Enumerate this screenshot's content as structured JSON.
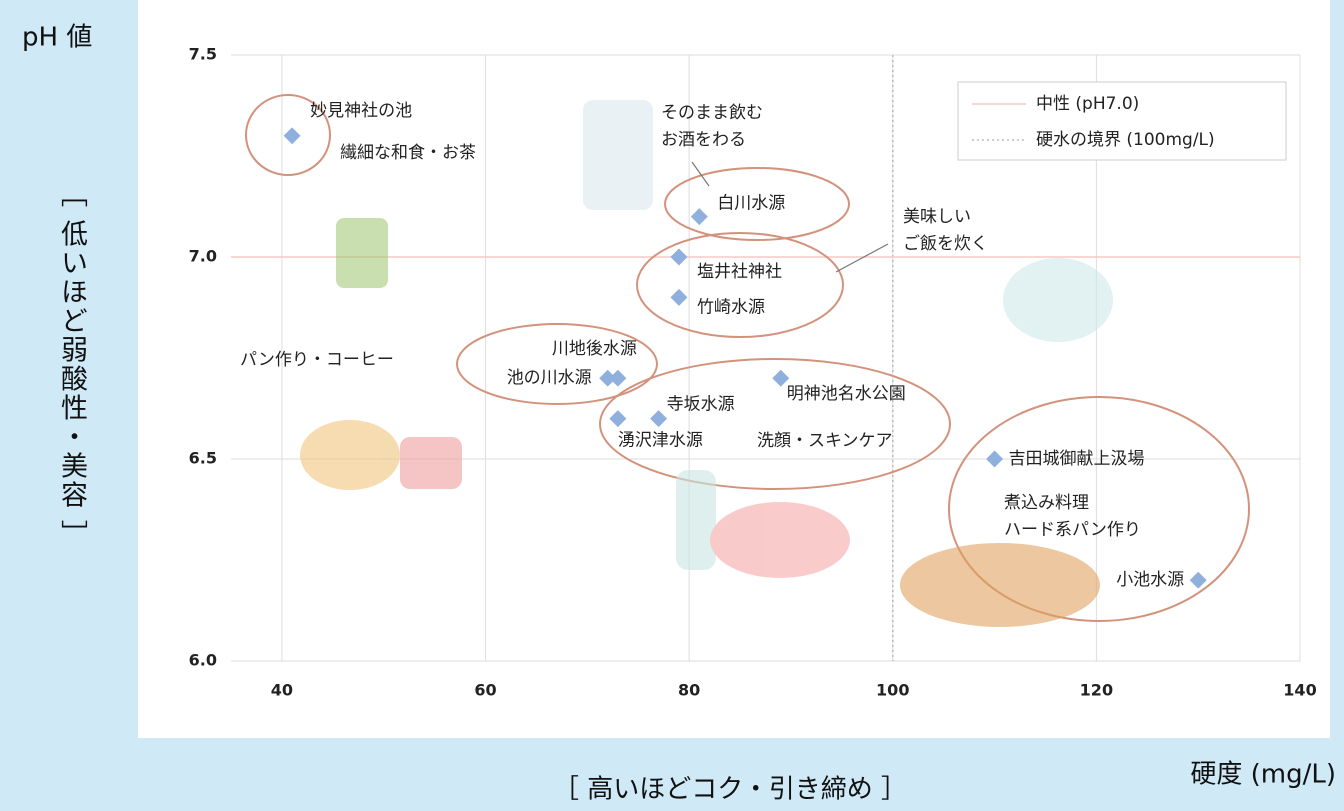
{
  "chart_data": {
    "type": "scatter",
    "y_title": "pH 値",
    "y_axis_note": "［ 低いほど弱酸性・美容 ］",
    "x_axis_note": "［ 高いほどコク・引き締め ］",
    "x_title": "硬度 (mg/L)",
    "xlim": [
      35,
      140
    ],
    "xticks": [
      40,
      60,
      80,
      100,
      120,
      140
    ],
    "ylim": [
      6.0,
      7.5
    ],
    "yticks": [
      {
        "value": 6.0,
        "label": "6.0"
      },
      {
        "value": 6.5,
        "label": "6.5"
      },
      {
        "value": 7.0,
        "label": "7.0"
      },
      {
        "value": 7.5,
        "label": "7.5"
      }
    ],
    "grid": true,
    "color": "#8fb0dc",
    "point_labels": [
      "妙見神社の池",
      "白川水源",
      "塩井社神社",
      "竹崎水源",
      "川地後水源",
      "池の川水源",
      "寺坂水源",
      "湧沢津水源",
      "明神池名水公園",
      "吉田城御献上汲場",
      "小池水源"
    ],
    "x": [
      41,
      81,
      79,
      79,
      73,
      72,
      77,
      73,
      89,
      110,
      130
    ],
    "values": [
      7.3,
      7.1,
      7.0,
      6.9,
      6.7,
      6.7,
      6.6,
      6.6,
      6.7,
      6.5,
      6.2
    ],
    "reference_lines": [
      {
        "name": "中性 (pH7.0)",
        "axis": "y",
        "value": 7.0,
        "color": "#f6c9c4",
        "style": "solid"
      },
      {
        "name": "硬水の境界 (100mg/L)",
        "axis": "x",
        "value": 100,
        "color": "#bbbbbb",
        "style": "dotted"
      }
    ],
    "annotations": [
      [
        "繊細な和食・お茶"
      ],
      [
        "そのまま飲む",
        "お酒をわる"
      ],
      [
        "美味しい",
        "ご飯を炊く"
      ],
      [
        "パン作り・コーヒー"
      ],
      [
        "洗顔・スキンケア"
      ],
      [
        "煮込み料理",
        "ハード系パン作り"
      ]
    ],
    "annotation_color": "#d98a6e"
  }
}
